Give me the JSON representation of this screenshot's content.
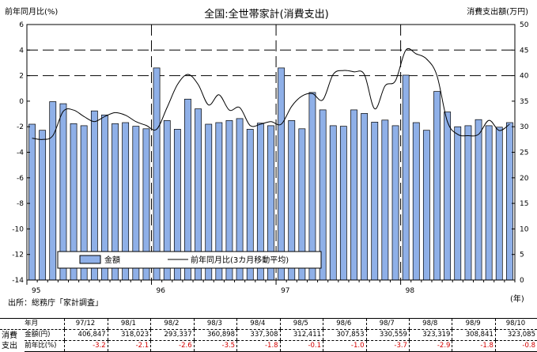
{
  "chart_data": {
    "type": "bar",
    "title": "全国:全世帯家計(消費支出)",
    "left_axis_label": "前年同月比(%)",
    "right_axis_label": "消費支出額(万円)",
    "left_ylim": [
      -14,
      6
    ],
    "left_ticks": [
      "6",
      "4",
      "2",
      "0",
      "-2",
      "-4",
      "-6",
      "-8",
      "-10",
      "-12",
      "-14"
    ],
    "right_ylim": [
      0,
      50
    ],
    "right_ticks": [
      "50",
      "45",
      "40",
      "35",
      "30",
      "25",
      "20",
      "15",
      "10",
      "5",
      "0"
    ],
    "x_labels": [
      "95",
      "96",
      "97",
      "98"
    ],
    "x_unit": "(年)",
    "source": "出所：総務庁「家計調査」",
    "grid": "dashed horizontal at 40 and 45; dashed vertical at year boundaries",
    "legend": {
      "position": "bottom-center",
      "bar_label": "金額",
      "line_label": "前年同月比(3カ月移動平均)"
    },
    "bar_series": {
      "name": "金額",
      "unit": "万円",
      "values": [
        30.5,
        29.3,
        34.9,
        34.5,
        30.6,
        30.2,
        33.1,
        32.3,
        30.6,
        30.8,
        30.1,
        29.6,
        41.5,
        31.2,
        29.5,
        35.4,
        33.5,
        30.5,
        30.8,
        31.2,
        31.6,
        29.5,
        30.7,
        30.2,
        41.5,
        31.2,
        29.6,
        36.7,
        33.3,
        30.2,
        30.1,
        33.3,
        32.6,
        30.9,
        31.3,
        30.2,
        40.1,
        30.8,
        29.3,
        36.9,
        32.9,
        30.0,
        30.2,
        31.4,
        30.2,
        29.9,
        30.8
      ]
    },
    "line_series": {
      "name": "前年同月比(3カ月移動平均)",
      "unit": "%",
      "values": [
        -2.9,
        -3.0,
        -2.7,
        -0.8,
        -0.7,
        -1.2,
        -1.6,
        -1.2,
        -0.9,
        -1.1,
        -1.6,
        -1.9,
        -2.2,
        -0.5,
        1.3,
        2.1,
        1.3,
        -0.3,
        0.5,
        -0.7,
        -0.5,
        -1.9,
        -1.8,
        -1.6,
        -1.8,
        -0.4,
        0.4,
        0.6,
        0.1,
        2.1,
        2.4,
        2.3,
        2.1,
        -0.6,
        1.2,
        1.6,
        4.0,
        3.7,
        3.3,
        2.0,
        -1.6,
        -2.6,
        -2.7,
        -2.6,
        -1.5,
        -2.3,
        -1.8
      ]
    }
  },
  "table": {
    "headers": [
      "年月",
      "97/12",
      "98/1",
      "98/2",
      "98/3",
      "98/4",
      "98/5",
      "98/6",
      "98/7",
      "98/8",
      "98/9",
      "98/10"
    ],
    "row_group": "消費支出",
    "row1_label": "金額(円)",
    "row1_values": [
      "406,847",
      "318,023",
      "293,337",
      "360,898",
      "337,308",
      "312,411",
      "307,853",
      "330,559",
      "323,319",
      "308,841",
      "323,085"
    ],
    "row2_label": "前年比(%)",
    "row2_values": [
      "-3.2",
      "-2.1",
      "-2.6",
      "-3.5",
      "-1.8",
      "-0.1",
      "-1.0",
      "-3.7",
      "-2.9",
      "-1.8",
      "-0.8"
    ],
    "negative_color": "#d40000"
  },
  "colors": {
    "bar_fill": "#8fb0e8",
    "bar_stroke": "#000000",
    "line": "#000000",
    "frame": "#000000"
  }
}
